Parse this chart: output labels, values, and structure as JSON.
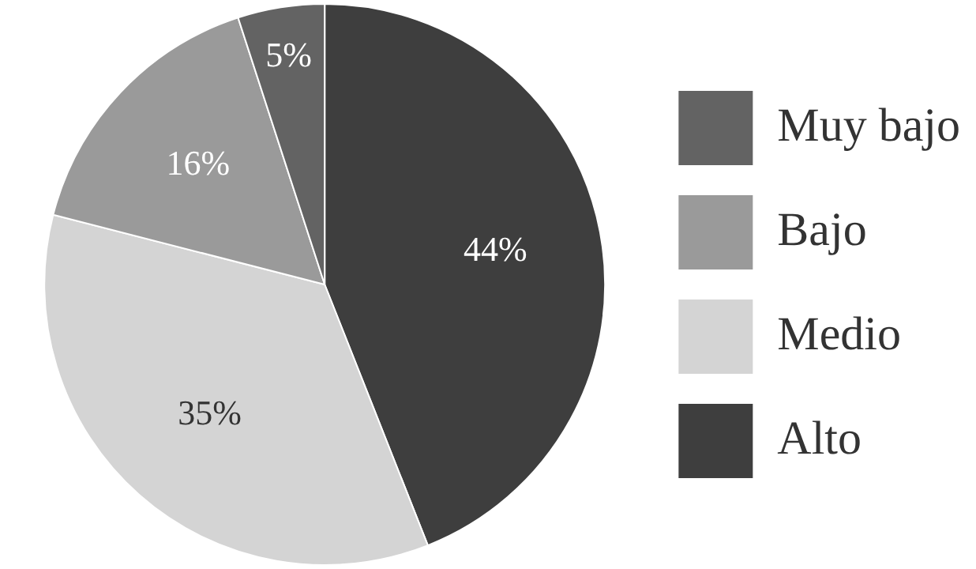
{
  "chart_data": {
    "type": "pie",
    "categories": [
      "Muy bajo",
      "Bajo",
      "Medio",
      "Alto"
    ],
    "values": [
      5,
      16,
      35,
      44
    ],
    "colors": [
      "#636363",
      "#9a9a9a",
      "#d4d4d4",
      "#3e3e3e"
    ],
    "value_labels": [
      "5%",
      "16%",
      "35%",
      "44%"
    ],
    "legend": "right"
  }
}
